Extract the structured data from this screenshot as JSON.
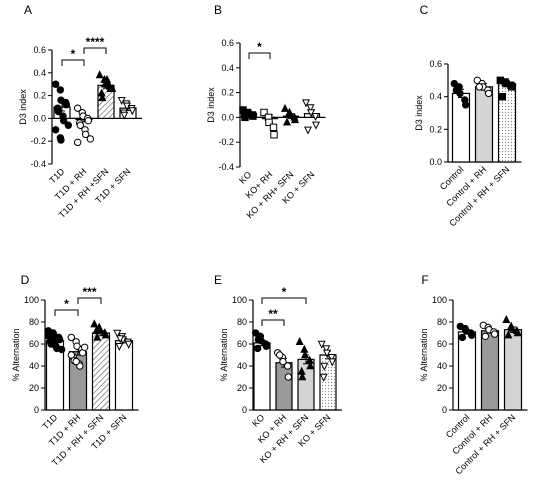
{
  "chart_data": [
    {
      "panel": "A",
      "type": "bar",
      "ylabel": "D3 index",
      "ylim": [
        -0.4,
        0.6
      ],
      "yticks": [
        "-0.4",
        "-0.2",
        "0.0",
        "0.2",
        "0.4",
        "0.6"
      ],
      "ytick_values": [
        -0.4,
        -0.2,
        0,
        0.2,
        0.4,
        0.6
      ],
      "categories": [
        "T1D",
        "T1D + RH",
        "T1D + RH +SFN",
        "T1D + SFN"
      ],
      "means": [
        0.1,
        0.0,
        0.29,
        0.09
      ],
      "errors": [
        0.035,
        0.03,
        0.025,
        0.02
      ],
      "fills": [
        "white",
        "white",
        "hatch",
        "white"
      ],
      "markers": [
        "circle-filled",
        "circle-open",
        "triangle-filled",
        "triangle-open"
      ],
      "points": [
        [
          0.3,
          0.25,
          0.16,
          0.14,
          0.12,
          0.09,
          0.06,
          0.02,
          -0.02,
          -0.06,
          -0.1,
          -0.17,
          -0.19
        ],
        [
          0.09,
          0.05,
          0.02,
          0.0,
          -0.02,
          -0.04,
          -0.06,
          -0.1,
          -0.14,
          -0.18,
          -0.21
        ],
        [
          0.38,
          0.34,
          0.3,
          0.28,
          0.26,
          0.22,
          0.18,
          0.34,
          0.3,
          0.26
        ],
        [
          0.16,
          0.13,
          0.11,
          0.09,
          0.07,
          0.05,
          0.03
        ]
      ],
      "significance": [
        {
          "from": 0,
          "to": 1,
          "label": "*"
        },
        {
          "from": 1,
          "to": 2,
          "label": "****"
        }
      ]
    },
    {
      "panel": "B",
      "type": "bar",
      "ylabel": "D3 index",
      "ylim": [
        -0.4,
        0.6
      ],
      "yticks": [
        "-0.4",
        "-0.2",
        "0.0",
        "0.2",
        "0.4",
        "0.6"
      ],
      "ytick_values": [
        -0.4,
        -0.2,
        0,
        0.2,
        0.4,
        0.6
      ],
      "categories": [
        "KO",
        "KO+ RH",
        "KO + RH+ SFN",
        "KO + SFN"
      ],
      "means": [
        0.03,
        -0.01,
        0.01,
        0.03
      ],
      "errors": [
        0.01,
        0.03,
        0.02,
        0.03
      ],
      "fills": [
        "white",
        "white",
        "white",
        "white"
      ],
      "markers": [
        "square-filled",
        "square-open",
        "triangle-filled",
        "triangle-open"
      ],
      "points": [
        [
          0.06,
          0.04,
          0.03,
          0.02,
          0.01,
          0.0
        ],
        [
          0.04,
          0.0,
          -0.04,
          -0.08,
          -0.14
        ],
        [
          0.07,
          0.04,
          0.02,
          0.0,
          -0.02,
          -0.04
        ],
        [
          0.12,
          0.08,
          0.04,
          0.01,
          -0.06,
          -0.1
        ]
      ],
      "significance": [
        {
          "from": 0,
          "to": 1,
          "label": "*"
        }
      ]
    },
    {
      "panel": "C",
      "type": "bar",
      "ylabel": "D3 index",
      "ylim": [
        0,
        0.6
      ],
      "yticks": [
        "0.0",
        "0.2",
        "0.4",
        "0.6"
      ],
      "ytick_values": [
        0,
        0.2,
        0.4,
        0.6
      ],
      "categories": [
        "Control",
        "Control + RH",
        "Control + RH + SFN"
      ],
      "means": [
        0.42,
        0.46,
        0.48
      ],
      "errors": [
        0.025,
        0.02,
        0.012
      ],
      "fills": [
        "white",
        "lightgray",
        "dots"
      ],
      "markers": [
        "circle-filled",
        "circle-open",
        "square-filled"
      ],
      "points": [
        [
          0.48,
          0.46,
          0.42,
          0.38,
          0.35,
          0.44
        ],
        [
          0.5,
          0.48,
          0.46,
          0.44,
          0.42,
          0.46
        ],
        [
          0.5,
          0.49,
          0.48,
          0.47,
          0.46,
          0.4
        ]
      ],
      "significance": []
    },
    {
      "panel": "D",
      "type": "bar",
      "ylabel": "% Alternation",
      "ylim": [
        0,
        100
      ],
      "yticks": [
        "0",
        "20",
        "40",
        "60",
        "80",
        "100"
      ],
      "ytick_values": [
        0,
        20,
        40,
        60,
        80,
        100
      ],
      "categories": [
        "T1D",
        "T1D + RH",
        "T1D + RH + SFN",
        "T1D + SFN"
      ],
      "means": [
        63,
        53,
        70,
        63
      ],
      "errors": [
        2.0,
        3.0,
        2.0,
        2.0
      ],
      "fills": [
        "white",
        "gray",
        "hatch",
        "white"
      ],
      "markers": [
        "circle-filled",
        "circle-open",
        "triangle-filled",
        "triangle-open"
      ],
      "points": [
        [
          72,
          70,
          68,
          66,
          64,
          62,
          60,
          58,
          56,
          55,
          67,
          65,
          61
        ],
        [
          66,
          62,
          58,
          55,
          52,
          48,
          45,
          42,
          40,
          57,
          50,
          44
        ],
        [
          78,
          75,
          73,
          70,
          68,
          72,
          66
        ],
        [
          70,
          67,
          64,
          62,
          60,
          58,
          65
        ]
      ],
      "significance": [
        {
          "from": 0,
          "to": 1,
          "label": "*"
        },
        {
          "from": 1,
          "to": 2,
          "label": "***"
        }
      ]
    },
    {
      "panel": "E",
      "type": "bar",
      "ylabel": "% Alternation",
      "ylim": [
        0,
        100
      ],
      "yticks": [
        "0",
        "20",
        "40",
        "60",
        "80",
        "100"
      ],
      "ytick_values": [
        0,
        20,
        40,
        60,
        80,
        100
      ],
      "categories": [
        "KO",
        "KO + RH",
        "KO + RH + SFN",
        "KO + SFN"
      ],
      "means": [
        61,
        43,
        46,
        50
      ],
      "errors": [
        2.5,
        4.0,
        4.0,
        3.5
      ],
      "fills": [
        "white",
        "gray",
        "lightgray",
        "dots"
      ],
      "markers": [
        "circle-filled",
        "circle-open",
        "triangle-filled",
        "triangle-open"
      ],
      "points": [
        [
          70,
          67,
          63,
          60,
          58,
          56,
          64
        ],
        [
          52,
          48,
          44,
          40,
          30,
          50
        ],
        [
          62,
          55,
          50,
          45,
          40,
          35,
          30
        ],
        [
          60,
          56,
          52,
          48,
          44,
          30,
          40
        ]
      ],
      "significance": [
        {
          "from": 0,
          "to": 1,
          "label": "**"
        },
        {
          "from": 0,
          "to": 2,
          "label": "*"
        }
      ]
    },
    {
      "panel": "F",
      "type": "bar",
      "ylabel": "% Alternation",
      "ylim": [
        0,
        100
      ],
      "yticks": [
        "0",
        "20",
        "40",
        "60",
        "80",
        "100"
      ],
      "ytick_values": [
        0,
        20,
        40,
        60,
        80,
        100
      ],
      "categories": [
        "Control",
        "Control + RH",
        "Control + RH + SFN"
      ],
      "means": [
        71,
        72,
        73
      ],
      "errors": [
        2.0,
        2.0,
        2.5
      ],
      "fills": [
        "white",
        "gray",
        "lightgray"
      ],
      "markers": [
        "circle-filled",
        "circle-open",
        "triangle-filled"
      ],
      "points": [
        [
          76,
          74,
          72,
          70,
          68,
          66
        ],
        [
          77,
          75,
          73,
          71,
          69,
          67
        ],
        [
          82,
          76,
          74,
          72,
          70,
          68
        ]
      ],
      "significance": []
    }
  ]
}
